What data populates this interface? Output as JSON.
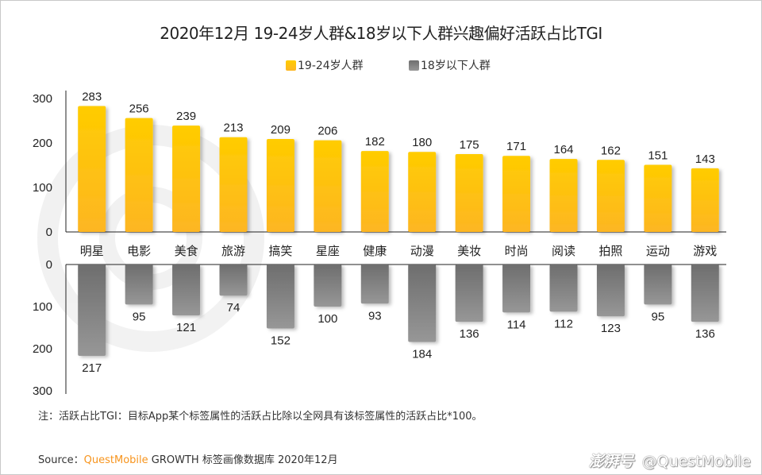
{
  "title": "2020年12月 19-24岁人群&18岁以下人群兴趣偏好活跃占比TGI",
  "legend": [
    {
      "label": "19-24岁人群",
      "color": "#fdbd1c"
    },
    {
      "label": "18岁以下人群",
      "color": "#7a7a7a"
    }
  ],
  "note": "注：活跃占比TGI：目标App某个标签属性的活跃占比除以全网具有该标签属性的活跃占比*100。",
  "source": {
    "prefix": "Source：",
    "brand": "QuestMobile",
    "suffix": " GROWTH 标签画像数据库 2020年12月"
  },
  "watermark": {
    "logo": "澎湃号",
    "handle": "@QuestMobile"
  },
  "chart_data": {
    "type": "bar",
    "title": "2020年12月 19-24岁人群&18岁以下人群兴趣偏好活跃占比TGI",
    "categories": [
      "明星",
      "电影",
      "美食",
      "旅游",
      "搞笑",
      "星座",
      "健康",
      "动漫",
      "美妆",
      "时尚",
      "阅读",
      "拍照",
      "运动",
      "游戏"
    ],
    "series": [
      {
        "name": "19-24岁人群",
        "values": [
          283,
          256,
          239,
          213,
          209,
          206,
          182,
          180,
          175,
          171,
          164,
          162,
          151,
          143
        ],
        "color_top": "#ffcc00",
        "color_bottom": "#fdb623",
        "direction": "up"
      },
      {
        "name": "18岁以下人群",
        "values": [
          217,
          95,
          121,
          74,
          152,
          100,
          93,
          184,
          136,
          114,
          112,
          123,
          95,
          136
        ],
        "color_top": "#6e6e6e",
        "color_bottom": "#979797",
        "direction": "down"
      }
    ],
    "top_axis": {
      "ticks": [
        "0",
        "100",
        "200",
        "300"
      ],
      "ylim": [
        0,
        300
      ]
    },
    "bottom_axis": {
      "ticks": [
        "0",
        "100",
        "200",
        "300"
      ],
      "ylim": [
        0,
        300
      ],
      "inverted": true
    },
    "legend_position": "top-center",
    "grid": false
  }
}
